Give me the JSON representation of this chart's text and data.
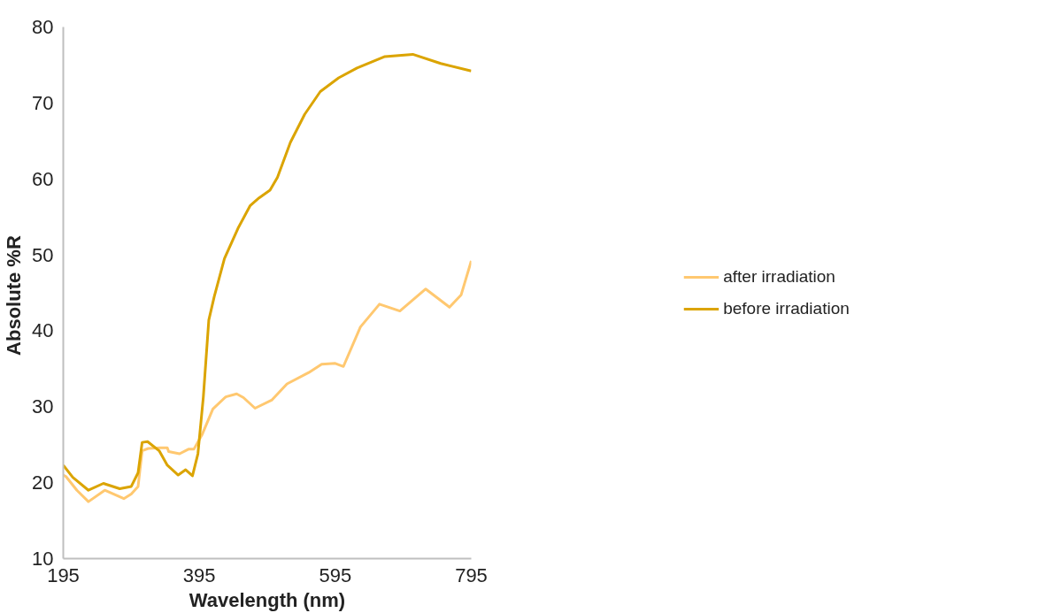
{
  "chart_data": {
    "type": "line",
    "xlabel": "Wavelength (nm)",
    "ylabel": "Absolute  %R",
    "xlim": [
      195,
      795
    ],
    "xticks": [
      195,
      395,
      595,
      795
    ],
    "ylim": [
      10,
      80
    ],
    "yticks": [
      10,
      20,
      30,
      40,
      50,
      60,
      70,
      80
    ],
    "grid": false,
    "legend": "right",
    "marker": "none",
    "line_style": "solid",
    "series": [
      {
        "name": "after irradiation",
        "color": "#ffc870",
        "x": [
          195,
          199,
          215,
          232,
          256,
          284,
          295,
          305,
          311,
          320,
          338,
          348,
          350,
          366,
          379,
          387,
          399,
          415,
          434,
          450,
          460,
          477,
          502,
          524,
          556,
          575,
          595,
          607,
          632,
          660,
          690,
          728,
          763,
          780,
          795
        ],
        "values": [
          21.0,
          20.8,
          19.0,
          17.5,
          19.0,
          17.9,
          18.5,
          19.5,
          24.2,
          24.5,
          24.6,
          24.6,
          24.1,
          23.8,
          24.4,
          24.4,
          26.3,
          29.7,
          31.3,
          31.7,
          31.2,
          29.8,
          30.9,
          33.0,
          34.5,
          35.6,
          35.7,
          35.3,
          40.5,
          43.5,
          42.6,
          45.5,
          43.1,
          44.7,
          49.2
        ]
      },
      {
        "name": "before irradiation",
        "color": "#dba400",
        "x": [
          195,
          209,
          232,
          254,
          278,
          295,
          305,
          311,
          319,
          336,
          348,
          364,
          375,
          385,
          393,
          401,
          409,
          417,
          432,
          452,
          470,
          483,
          499,
          510,
          529,
          550,
          573,
          600,
          627,
          668,
          709,
          750,
          795
        ],
        "values": [
          22.3,
          20.7,
          19.0,
          19.9,
          19.2,
          19.5,
          21.3,
          25.3,
          25.4,
          24.2,
          22.3,
          21.0,
          21.7,
          20.9,
          23.8,
          31.3,
          41.4,
          44.5,
          49.5,
          53.5,
          56.5,
          57.5,
          58.5,
          60.2,
          64.8,
          68.5,
          71.5,
          73.3,
          74.6,
          76.1,
          76.4,
          75.2,
          74.2
        ]
      }
    ]
  }
}
